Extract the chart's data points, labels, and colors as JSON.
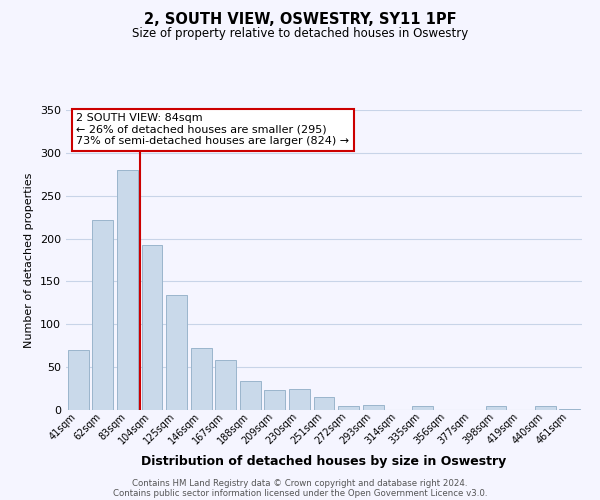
{
  "title": "2, SOUTH VIEW, OSWESTRY, SY11 1PF",
  "subtitle": "Size of property relative to detached houses in Oswestry",
  "xlabel": "Distribution of detached houses by size in Oswestry",
  "ylabel": "Number of detached properties",
  "bar_labels": [
    "41sqm",
    "62sqm",
    "83sqm",
    "104sqm",
    "125sqm",
    "146sqm",
    "167sqm",
    "188sqm",
    "209sqm",
    "230sqm",
    "251sqm",
    "272sqm",
    "293sqm",
    "314sqm",
    "335sqm",
    "356sqm",
    "377sqm",
    "398sqm",
    "419sqm",
    "440sqm",
    "461sqm"
  ],
  "bar_values": [
    70,
    222,
    280,
    193,
    134,
    72,
    58,
    34,
    23,
    25,
    15,
    5,
    6,
    0,
    5,
    0,
    0,
    5,
    0,
    5,
    1
  ],
  "bar_color": "#c9d9ea",
  "bar_edge_color": "#9ab5cc",
  "annotation_box_text": "2 SOUTH VIEW: 84sqm\n← 26% of detached houses are smaller (295)\n73% of semi-detached houses are larger (824) →",
  "annotation_box_color": "#ffffff",
  "annotation_box_edge_color": "#cc0000",
  "vertical_line_x": 2.5,
  "vertical_line_color": "#cc0000",
  "ylim": [
    0,
    350
  ],
  "yticks": [
    0,
    50,
    100,
    150,
    200,
    250,
    300,
    350
  ],
  "footer_line1": "Contains HM Land Registry data © Crown copyright and database right 2024.",
  "footer_line2": "Contains public sector information licensed under the Open Government Licence v3.0.",
  "background_color": "#f5f5ff",
  "grid_color": "#c8d4e8"
}
